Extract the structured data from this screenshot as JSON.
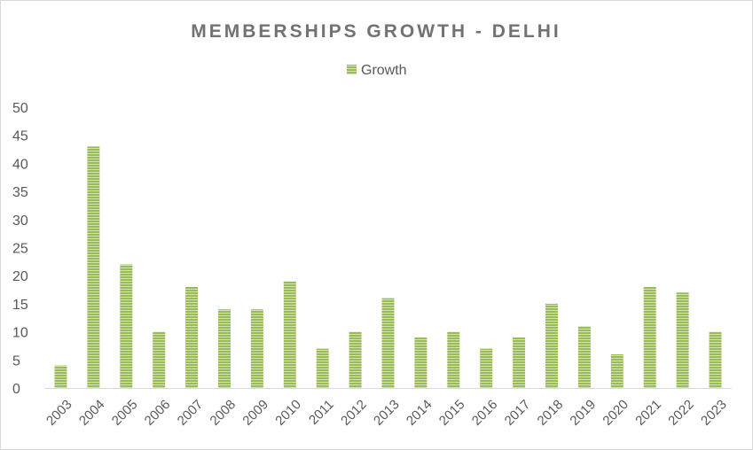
{
  "chart_data": {
    "type": "bar",
    "title": "MEMBERSHIPS GROWTH - DELHI",
    "xlabel": "",
    "ylabel": "",
    "legend_position": "top",
    "grid": false,
    "ylim": [
      0,
      50
    ],
    "yticks": [
      "0",
      "5",
      "10",
      "15",
      "20",
      "25",
      "30",
      "35",
      "40",
      "45",
      "50"
    ],
    "categories": [
      "2003",
      "2004",
      "2005",
      "2006",
      "2007",
      "2008",
      "2009",
      "2010",
      "2011",
      "2012",
      "2013",
      "2014",
      "2015",
      "2016",
      "2017",
      "2018",
      "2019",
      "2020",
      "2021",
      "2022",
      "2023"
    ],
    "series": [
      {
        "name": "Growth",
        "color": "#9bbb59",
        "values": [
          4,
          43,
          22,
          10,
          18,
          14,
          14,
          19,
          7,
          10,
          16,
          9,
          10,
          7,
          9,
          15,
          11,
          6,
          18,
          17,
          10
        ]
      }
    ]
  }
}
